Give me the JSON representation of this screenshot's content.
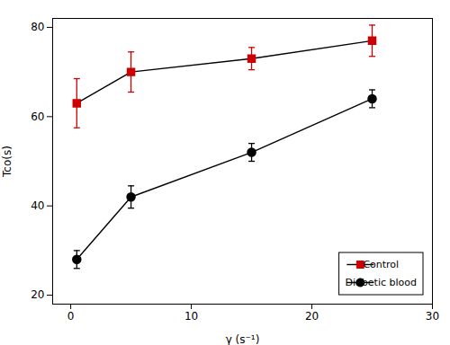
{
  "chart_data": {
    "type": "line",
    "xlabel": "γ (s⁻¹)",
    "ylabel": "Tco(s)",
    "x": [
      0.5,
      5,
      15,
      25
    ],
    "series": [
      {
        "name": "Control",
        "color": "#cc0000",
        "marker": "square",
        "values": [
          63,
          70,
          73,
          77
        ],
        "yerr": [
          5.5,
          4.5,
          2.5,
          3.5
        ]
      },
      {
        "name": "Diabetic blood",
        "color": "#000000",
        "marker": "circle",
        "values": [
          28,
          42,
          52,
          64
        ],
        "yerr": [
          2.0,
          2.5,
          2.0,
          2.0
        ]
      }
    ],
    "color": "#000000",
    "xlim": [
      -1.5,
      30
    ],
    "ylim": [
      18,
      82
    ],
    "xticks": [
      0,
      10,
      20,
      30
    ],
    "yticks": [
      20,
      40,
      60,
      80
    ],
    "grid": false,
    "legend": "lower right"
  }
}
